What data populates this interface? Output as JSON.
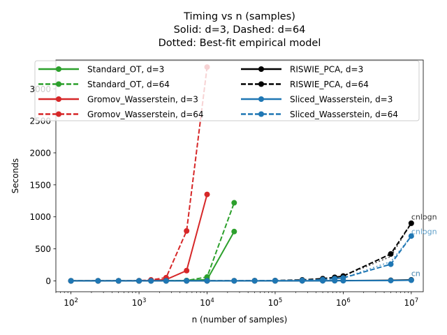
{
  "chart_data": {
    "type": "line",
    "title": [
      "Timing vs n (samples)",
      "Solid: d=3, Dashed: d=64",
      "Dotted: Best-fit empirical model"
    ],
    "xlabel": "n (number of samples)",
    "ylabel": "Seconds",
    "xscale": "log",
    "xlim": [
      60,
      15000000
    ],
    "ylim": [
      -170,
      3450
    ],
    "xticks": [
      {
        "value": 100,
        "base": "10",
        "exp": "2"
      },
      {
        "value": 1000,
        "base": "10",
        "exp": "3"
      },
      {
        "value": 10000,
        "base": "10",
        "exp": "4"
      },
      {
        "value": 100000,
        "base": "10",
        "exp": "5"
      },
      {
        "value": 1000000,
        "base": "10",
        "exp": "6"
      },
      {
        "value": 10000000,
        "base": "10",
        "exp": "7"
      }
    ],
    "yticks": [
      0,
      500,
      1000,
      1500,
      2000,
      2500,
      3000
    ],
    "grid": false,
    "legend": {
      "position": "top",
      "columns": 2
    },
    "series": [
      {
        "name": "Standard_OT, d=3",
        "color": "#2ca02c",
        "dash": "solid",
        "x": [
          100,
          250,
          500,
          1000,
          1500,
          2500,
          5000,
          10000,
          25000
        ],
        "y": [
          0,
          0,
          0,
          0,
          1,
          2,
          5,
          20,
          770
        ]
      },
      {
        "name": "Standard_OT, d=64",
        "color": "#2ca02c",
        "dash": "dashed",
        "x": [
          100,
          250,
          500,
          1000,
          1500,
          2500,
          5000,
          10000,
          25000
        ],
        "y": [
          0,
          0,
          0,
          0,
          1,
          2,
          5,
          60,
          1220
        ]
      },
      {
        "name": "Gromov_Wasserstein, d=3",
        "color": "#d62728",
        "dash": "solid",
        "x": [
          100,
          250,
          500,
          1000,
          1500,
          2500,
          5000,
          10000
        ],
        "y": [
          0,
          0,
          0,
          0,
          5,
          20,
          160,
          1350
        ]
      },
      {
        "name": "Gromov_Wasserstein, d=64",
        "color": "#d62728",
        "dash": "dashed",
        "x": [
          100,
          250,
          500,
          1000,
          1500,
          2500,
          5000,
          10000
        ],
        "y": [
          0,
          0,
          0,
          2,
          15,
          50,
          780,
          3340
        ]
      },
      {
        "name": "RISWIE_PCA, d=3",
        "color": "#000000",
        "dash": "solid",
        "x": [
          100,
          250,
          500,
          1000,
          1500,
          2500,
          5000,
          10000,
          25000,
          50000,
          100000,
          250000,
          500000,
          750000,
          1000000,
          5000000,
          10000000
        ],
        "y": [
          0,
          0,
          0,
          0,
          0,
          0,
          0,
          0,
          0,
          0,
          0,
          1,
          2,
          3,
          4,
          8,
          15
        ]
      },
      {
        "name": "RISWIE_PCA, d=64",
        "color": "#000000",
        "dash": "dashed",
        "x": [
          100,
          250,
          500,
          1000,
          1500,
          2500,
          5000,
          10000,
          25000,
          50000,
          100000,
          250000,
          500000,
          750000,
          1000000,
          5000000,
          10000000
        ],
        "y": [
          0,
          0,
          0,
          0,
          0,
          0,
          0,
          1,
          2,
          3,
          5,
          15,
          35,
          55,
          75,
          420,
          900
        ]
      },
      {
        "name": "Sliced_Wasserstein, d=3",
        "color": "#1f77b4",
        "dash": "solid",
        "x": [
          100,
          250,
          500,
          1000,
          1500,
          2500,
          5000,
          10000,
          25000,
          50000,
          100000,
          250000,
          500000,
          750000,
          1000000,
          5000000,
          10000000
        ],
        "y": [
          0,
          0,
          0,
          0,
          0,
          0,
          0,
          0,
          0,
          0,
          0,
          1,
          1,
          2,
          2,
          5,
          10
        ]
      },
      {
        "name": "Sliced_Wasserstein, d=64",
        "color": "#1f77b4",
        "dash": "dashed",
        "x": [
          100,
          250,
          500,
          1000,
          1500,
          2500,
          5000,
          10000,
          25000,
          50000,
          100000,
          250000,
          500000,
          750000,
          1000000,
          5000000,
          10000000
        ],
        "y": [
          0,
          0,
          0,
          0,
          0,
          0,
          0,
          1,
          1,
          2,
          3,
          8,
          20,
          35,
          45,
          260,
          700
        ]
      }
    ],
    "fits": [
      {
        "color": "#000000",
        "x": [
          1000000,
          5000000,
          10000000
        ],
        "y": [
          75,
          380,
          900
        ]
      },
      {
        "color": "#1f77b4",
        "x": [
          1000000,
          5000000,
          10000000
        ],
        "y": [
          45,
          300,
          700
        ]
      }
    ],
    "annotations": [
      {
        "text": "cnlogn",
        "color": "#333333",
        "x": 10000000,
        "y": 960
      },
      {
        "text": "cnlogn",
        "color": "#5f9fc9",
        "x": 10000000,
        "y": 730
      },
      {
        "text": "cn",
        "color": "#333333",
        "x": 10000000,
        "y": 75
      },
      {
        "text": "cn",
        "color": "#5f9fc9",
        "x": 10000000,
        "y": 75
      }
    ]
  }
}
